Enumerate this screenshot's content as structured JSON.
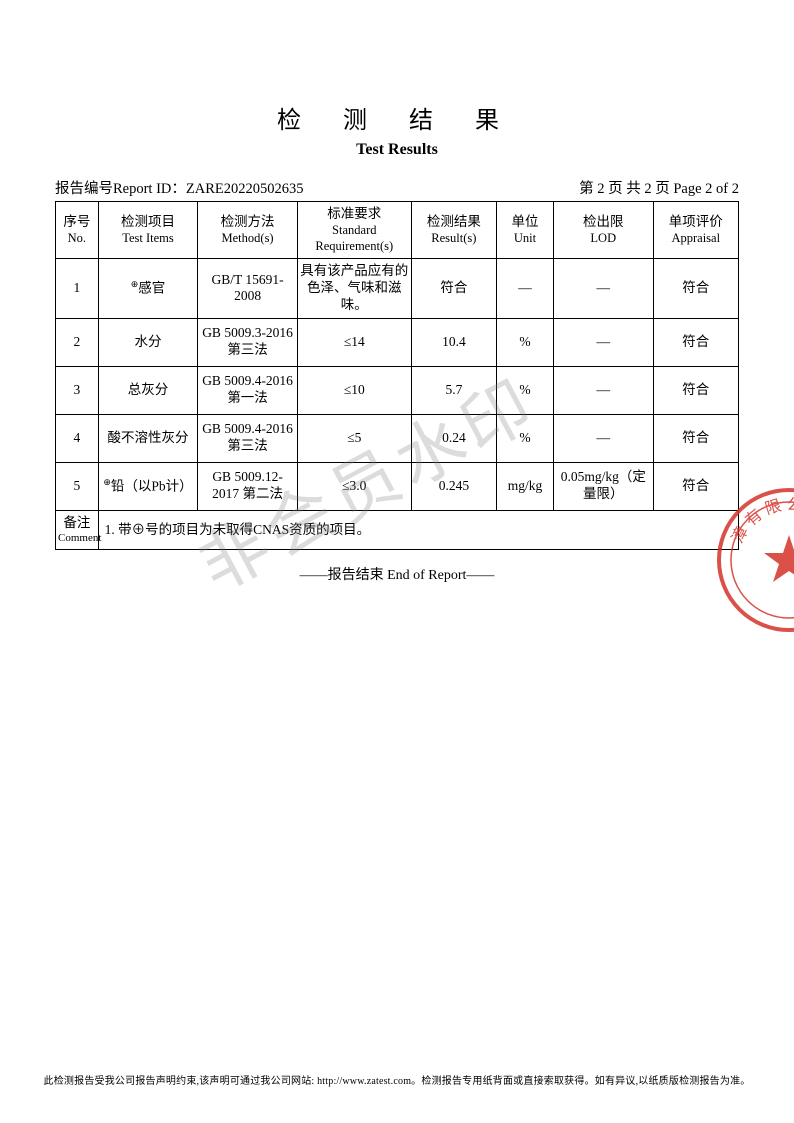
{
  "title_cn": "检 测 结 果",
  "title_en": "Test Results",
  "report_id_label": "报告编号Report ID：",
  "report_id": "ZARE20220502635",
  "page_info": "第 2 页 共 2 页 Page 2 of 2",
  "columns": {
    "no": {
      "cn": "序号",
      "en": "No."
    },
    "item": {
      "cn": "检测项目",
      "en": "Test Items"
    },
    "method": {
      "cn": "检测方法",
      "en": "Method(s)"
    },
    "req": {
      "cn": "标准要求",
      "en": "Standard Requirement(s)"
    },
    "result": {
      "cn": "检测结果",
      "en": "Result(s)"
    },
    "unit": {
      "cn": "单位",
      "en": "Unit"
    },
    "lod": {
      "cn": "检出限",
      "en": "LOD"
    },
    "appraisal": {
      "cn": "单项评价",
      "en": "Appraisal"
    }
  },
  "rows": [
    {
      "no": "1",
      "item": "⊕感官",
      "method": "GB/T 15691-2008",
      "req": "具有该产品应有的色泽、气味和滋味。",
      "result": "符合",
      "unit": "—",
      "lod": "—",
      "appraisal": "符合"
    },
    {
      "no": "2",
      "item": "水分",
      "method": "GB 5009.3-2016 第三法",
      "req": "≤14",
      "result": "10.4",
      "unit": "%",
      "lod": "—",
      "appraisal": "符合"
    },
    {
      "no": "3",
      "item": "总灰分",
      "method": "GB 5009.4-2016 第一法",
      "req": "≤10",
      "result": "5.7",
      "unit": "%",
      "lod": "—",
      "appraisal": "符合"
    },
    {
      "no": "4",
      "item": "酸不溶性灰分",
      "method": "GB 5009.4-2016 第三法",
      "req": "≤5",
      "result": "0.24",
      "unit": "%",
      "lod": "—",
      "appraisal": "符合"
    },
    {
      "no": "5",
      "item": "⊕铅（以Pb计）",
      "method": "GB 5009.12-2017 第二法",
      "req": "≤3.0",
      "result": "0.245",
      "unit": "mg/kg",
      "lod": "0.05mg/kg（定量限）",
      "appraisal": "符合"
    }
  ],
  "comment_label_cn": "备注",
  "comment_label_en": "Comment",
  "comment_text": "1. 带⊕号的项目为未取得CNAS资质的项目。",
  "end_of_report": "——报告结束 End of Report——",
  "watermark_text": "非会员水印",
  "footer_text": "此检测报告受我公司报告声明约束,该声明可通过我公司网站: http://www.zatest.com。检测报告专用纸背面或直接索取获得。如有异议,以纸质版检测报告为准。",
  "seal_color": "#d4332a"
}
